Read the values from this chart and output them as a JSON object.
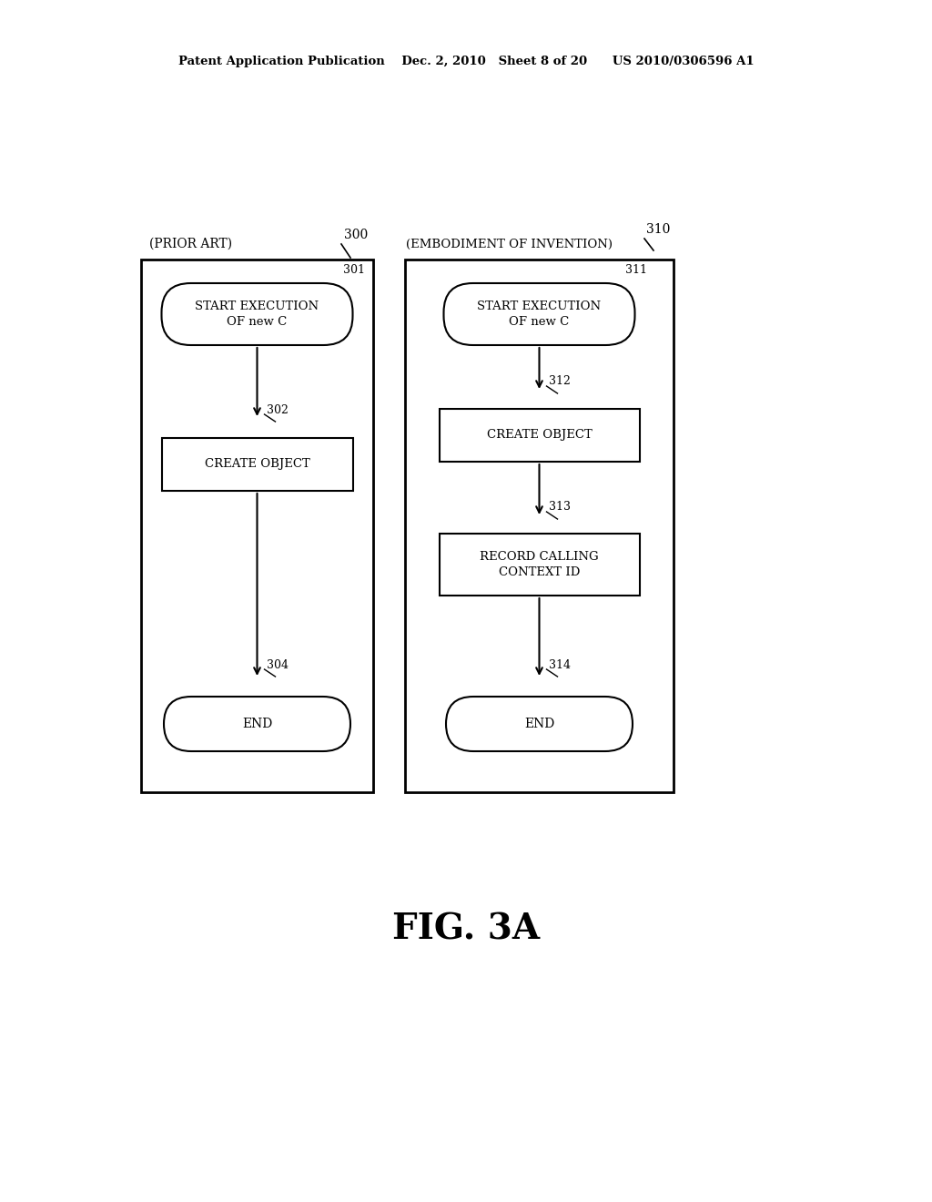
{
  "bg_color": "#ffffff",
  "header": "Patent Application Publication    Dec. 2, 2010   Sheet 8 of 20      US 2010/0306596 A1",
  "fig_label": "FIG. 3A",
  "left_label": "(PRIOR ART)",
  "left_ref": "300",
  "right_label": "(EMBODIMENT OF INVENTION)",
  "right_ref": "310",
  "nodes_left": [
    {
      "ref": "301",
      "text": "START EXECUTION\nOF new C",
      "type": "rounded"
    },
    {
      "ref": "302",
      "text": "CREATE OBJECT",
      "type": "rect"
    },
    {
      "ref": "304",
      "text": "END",
      "type": "pill"
    }
  ],
  "nodes_right": [
    {
      "ref": "311",
      "text": "START EXECUTION\nOF new C",
      "type": "rounded"
    },
    {
      "ref": "312",
      "text": "CREATE OBJECT",
      "type": "rect"
    },
    {
      "ref": "313",
      "text": "RECORD CALLING\nCONTEXT ID",
      "type": "rect"
    },
    {
      "ref": "314",
      "text": "END",
      "type": "pill"
    }
  ]
}
